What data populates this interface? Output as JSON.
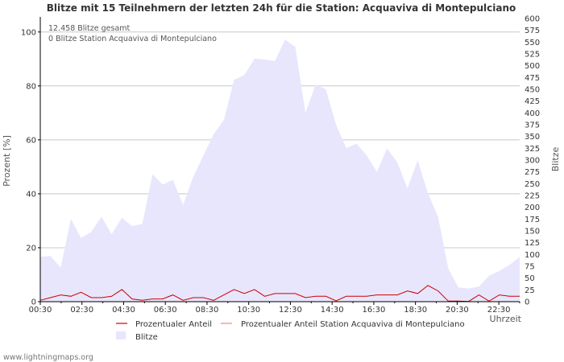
{
  "chart_data": {
    "type": "area",
    "title": "Blitze mit 15 Teilnehmern der letzten 24h für die Station: Acquaviva di Montepulciano",
    "ylabel_left": "Prozent   [%]",
    "ylabel_right": "Blitze",
    "xlabel": "Uhrzeit",
    "ylim_left": [
      0,
      105
    ],
    "ylim_right": [
      0,
      600
    ],
    "left_ticks": [
      0,
      20,
      40,
      60,
      80,
      100
    ],
    "right_ticks": [
      0,
      25,
      50,
      75,
      100,
      125,
      150,
      175,
      200,
      225,
      250,
      275,
      300,
      325,
      350,
      375,
      400,
      425,
      450,
      475,
      500,
      525,
      550,
      575,
      600
    ],
    "x_tick_labels": [
      "00:30",
      "02:30",
      "04:30",
      "06:30",
      "08:30",
      "10:30",
      "12:30",
      "14:30",
      "16:30",
      "18:30",
      "20:30",
      "22:30"
    ],
    "annotations": [
      "12.458 Blitze gesamt",
      "0 Blitze Station Acquaviva di Montepulciano"
    ],
    "series": [
      {
        "name": "Blitze",
        "axis": "right",
        "color": "#e8e6fc",
        "values": [
          95,
          97,
          72,
          175,
          135,
          148,
          180,
          143,
          178,
          160,
          165,
          270,
          248,
          258,
          205,
          265,
          310,
          355,
          385,
          470,
          480,
          515,
          513,
          510,
          555,
          540,
          400,
          460,
          450,
          375,
          325,
          335,
          310,
          275,
          325,
          295,
          240,
          300,
          230,
          180,
          70,
          30,
          28,
          32,
          55,
          65,
          78,
          95
        ]
      },
      {
        "name": "Prozentualer Anteil",
        "axis": "left",
        "color": "#cc0000",
        "values": [
          0.5,
          1.5,
          2.5,
          2.0,
          3.5,
          1.5,
          1.5,
          2.0,
          4.5,
          1.0,
          0.5,
          1.0,
          1.0,
          2.5,
          0.5,
          1.5,
          1.5,
          0.5,
          2.5,
          4.5,
          3.0,
          4.5,
          2.0,
          3.0,
          3.0,
          3.0,
          1.5,
          2.0,
          2.0,
          0.3,
          2.0,
          2.0,
          2.0,
          2.5,
          2.5,
          2.5,
          4.0,
          3.0,
          6.0,
          4.0,
          0.2,
          0.2,
          0.1,
          2.5,
          0.2,
          2.5,
          2.0,
          2.0
        ]
      },
      {
        "name": "Prozentualer Anteil Station Acquaviva di Montepulciano",
        "axis": "left",
        "color": "#ff8080",
        "values": [
          0,
          0,
          0,
          0,
          0,
          0,
          0,
          0,
          0,
          0,
          0,
          0,
          0,
          0,
          0,
          0,
          0,
          0,
          0,
          0,
          0,
          0,
          0,
          0,
          0,
          0,
          0,
          0,
          0,
          0,
          0,
          0,
          0,
          0,
          0,
          0,
          0,
          0,
          0,
          0,
          0,
          0,
          0,
          0,
          0,
          0,
          0,
          0
        ]
      }
    ]
  },
  "legend": {
    "item1": "Prozentualer Anteil",
    "item2": "Prozentualer Anteil Station Acquaviva di Montepulciano",
    "item3": "Blitze"
  },
  "footer": "www.lightningmaps.org"
}
